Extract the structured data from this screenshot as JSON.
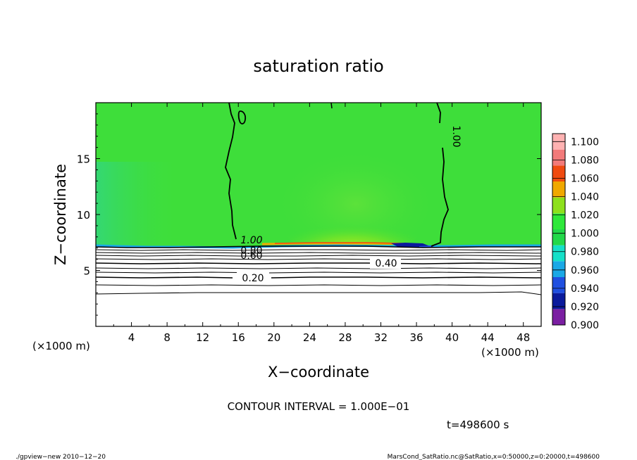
{
  "chart_data": {
    "type": "heatmap",
    "title": "saturation ratio",
    "xlabel": "X−coordinate",
    "ylabel": "Z−coordinate",
    "xunit_left": "(×1000 m)",
    "xunit_right": "(×1000 m)",
    "xlim": [
      0,
      50
    ],
    "ylim": [
      0,
      20
    ],
    "x_ticks": [
      4,
      8,
      12,
      16,
      20,
      24,
      28,
      32,
      36,
      40,
      44,
      48
    ],
    "x_tick_labels": [
      "4",
      "8",
      "12",
      "16",
      "20",
      "24",
      "28",
      "32",
      "36",
      "40",
      "44",
      "48"
    ],
    "y_ticks": [
      5,
      10,
      15
    ],
    "y_tick_labels": [
      "5",
      "10",
      "15"
    ],
    "colorbar": {
      "levels": [
        0.9,
        0.92,
        0.94,
        0.96,
        0.98,
        1.0,
        1.02,
        1.04,
        1.06,
        1.08,
        1.1
      ],
      "labels": [
        "0.900",
        "0.920",
        "0.940",
        "0.960",
        "0.980",
        "1.000",
        "1.020",
        "1.040",
        "1.060",
        "1.080",
        "1.100"
      ],
      "colors": [
        "#7b1fa2",
        "#0a1a9c",
        "#1f4fe0",
        "#1aa8e6",
        "#15e0c8",
        "#22d84a",
        "#2ee83a",
        "#8ee01c",
        "#f0a800",
        "#f04a10",
        "#f27a7a",
        "#ffb2b2"
      ]
    },
    "background_color": "#3ede3a",
    "contours": [
      {
        "level": 1.0,
        "label": "1.00"
      },
      {
        "level": 0.8,
        "label": "0.80"
      },
      {
        "level": 0.6,
        "label": "0.60"
      },
      {
        "level": 0.4,
        "label": "0.40"
      },
      {
        "level": 0.2,
        "label": "0.20"
      }
    ],
    "contour_interval_text": "CONTOUR INTERVAL = 1.000E−01",
    "time_text": "t=498600 s"
  },
  "footer": {
    "left": "./gpview−new   2010−12−20",
    "right": "MarsCond_SatRatio.nc@SatRatio,x=0:50000,z=0:20000,t=498600"
  }
}
